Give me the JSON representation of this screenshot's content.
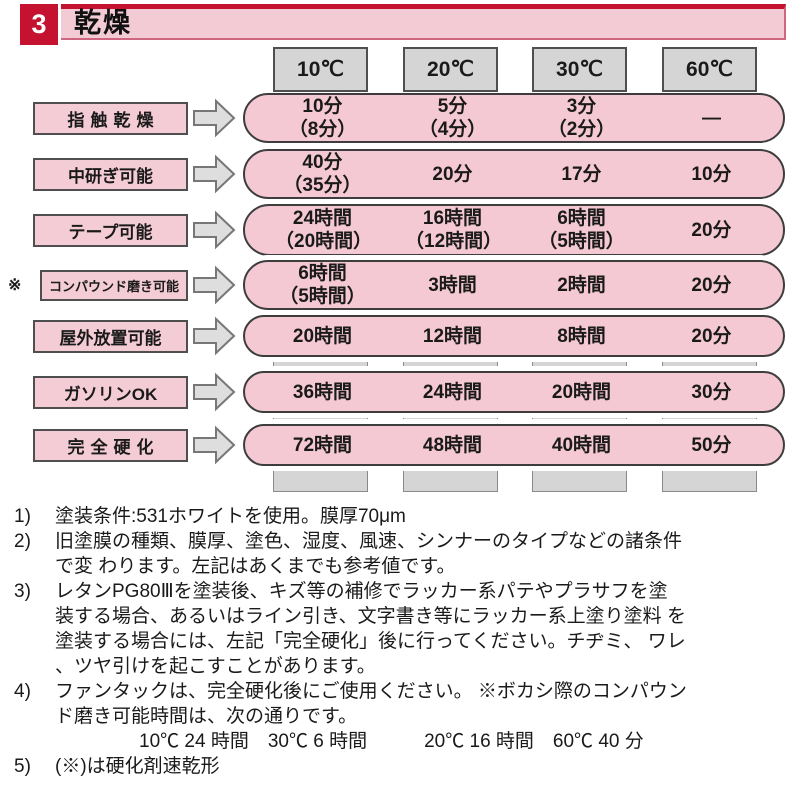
{
  "header": {
    "number": "3",
    "title": "乾燥"
  },
  "table": {
    "columns": [
      "10℃",
      "20℃",
      "30℃",
      "60℃"
    ],
    "rows": [
      {
        "label": "指触乾燥",
        "note_mark": "",
        "cells": [
          [
            "10分",
            "（8分）"
          ],
          [
            "5分",
            "（4分）"
          ],
          [
            "3分",
            "（2分）"
          ],
          [
            "—"
          ]
        ]
      },
      {
        "label": "中研ぎ可能",
        "note_mark": "",
        "cells": [
          [
            "40分",
            "（35分）"
          ],
          [
            "20分"
          ],
          [
            "17分"
          ],
          [
            "10分"
          ]
        ]
      },
      {
        "label": "テープ可能",
        "note_mark": "",
        "cells": [
          [
            "24時間",
            "（20時間）"
          ],
          [
            "16時間",
            "（12時間）"
          ],
          [
            "6時間",
            "（5時間）"
          ],
          [
            "20分"
          ]
        ]
      },
      {
        "label": "コンパウンド磨き可能",
        "note_mark": "※",
        "cells": [
          [
            "6時間",
            "（5時間）"
          ],
          [
            "3時間"
          ],
          [
            "2時間"
          ],
          [
            "20分"
          ]
        ]
      },
      {
        "label": "屋外放置可能",
        "note_mark": "",
        "cells": [
          [
            "20時間"
          ],
          [
            "12時間"
          ],
          [
            "8時間"
          ],
          [
            "20分"
          ]
        ]
      },
      {
        "label": "ガソリンOK",
        "note_mark": "",
        "cells": [
          [
            "36時間"
          ],
          [
            "24時間"
          ],
          [
            "20時間"
          ],
          [
            "30分"
          ]
        ]
      },
      {
        "label": "完全硬化",
        "note_mark": "",
        "cells": [
          [
            "72時間"
          ],
          [
            "48時間"
          ],
          [
            "40時間"
          ],
          [
            "50分"
          ]
        ]
      }
    ]
  },
  "notes": [
    {
      "num": "1)",
      "lines": [
        "塗装条件:531ホワイトを使用。膜厚70μm"
      ]
    },
    {
      "num": "2)",
      "lines": [
        "旧塗膜の種類、膜厚、塗色、湿度、風速、シンナーのタイプなどの諸条件",
        "で変 わります。左記はあくまでも参考値です。"
      ]
    },
    {
      "num": "3)",
      "lines": [
        "レタンPG80Ⅲを塗装後、キズ等の補修でラッカー系パテやプラサフを塗",
        "装する場合、あるいはライン引き、文字書き等にラッカー系上塗り塗料 を",
        "塗装する場合には、左記「完全硬化」後に行ってください。チヂミ、 ワレ",
        "、ツヤ引けを起こすことがあります。"
      ]
    },
    {
      "num": "4)",
      "lines": [
        "ファンタックは、完全硬化後にご使用ください。 ※ボカシ際のコンパウン",
        "ド磨き可能時間は、次の通りです。",
        "10℃ 24 時間　30℃ 6 時間　　　20℃ 16 時間　60℃ 40 分"
      ],
      "indented_line": 2
    },
    {
      "num": "5)",
      "lines": [
        "(※)は硬化剤速乾形"
      ]
    }
  ],
  "colors": {
    "accent_red": "#c41230",
    "banner_pink": "#f2cbd5",
    "pill_pink": "#f5c9d3",
    "label_pink": "#f4ccd6",
    "column_gray": "#d5d5d5",
    "border_dark": "#3d3d3d"
  }
}
